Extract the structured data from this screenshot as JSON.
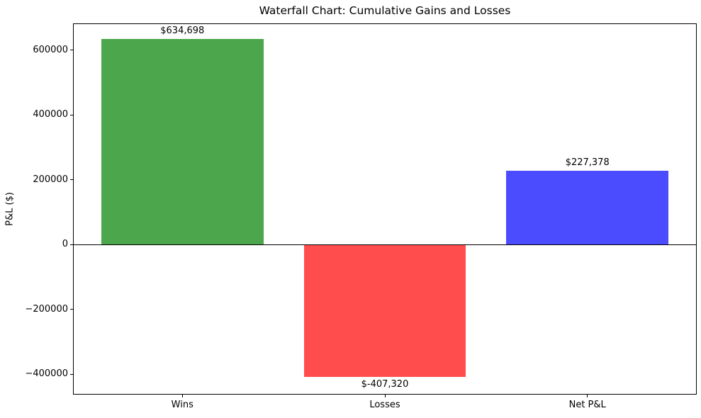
{
  "chart_data": {
    "type": "bar",
    "title": "Waterfall Chart: Cumulative Gains and Losses",
    "xlabel": "",
    "ylabel": "P&L ($)",
    "categories": [
      "Wins",
      "Losses",
      "Net P&L"
    ],
    "values": [
      634698,
      -407320,
      227378
    ],
    "bar_labels": [
      "$634,698",
      "$-407,320",
      "$227,378"
    ],
    "bar_colors": [
      "#4ca64c",
      "#ff4c4c",
      "#4c4cff"
    ],
    "ylim": [
      -463000,
      682000
    ],
    "yticks": [
      -400000,
      -200000,
      0,
      200000,
      400000,
      600000
    ],
    "ytick_labels": [
      "−400000",
      "−200000",
      "0",
      "200000",
      "400000",
      "600000"
    ],
    "grid": false,
    "legend": null,
    "zero_line": true,
    "bar_width_fraction": 0.8
  }
}
